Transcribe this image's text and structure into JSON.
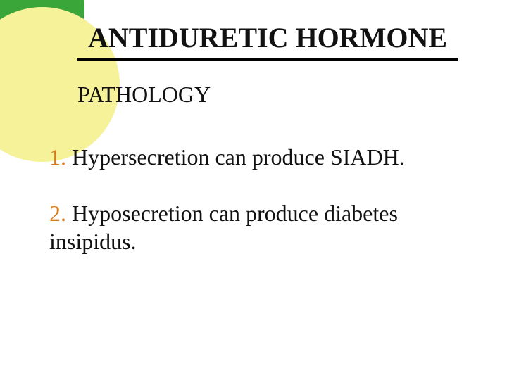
{
  "slide": {
    "title": "ANTIDURETIC HORMONE",
    "subtitle": "PATHOLOGY",
    "items": [
      {
        "num": "1.",
        "text": " Hypersecretion can produce SIADH."
      },
      {
        "num": "2.",
        "text": " Hyposecretion can produce diabetes insipidus."
      }
    ],
    "colors": {
      "outer_circle": "#3aa63a",
      "inner_circle": "#f5f29a",
      "number_color": "#d67b1a",
      "text_color": "#111111",
      "background": "#ffffff",
      "rule_color": "#000000"
    },
    "typography": {
      "title_font": "Georgia serif bold",
      "title_size_pt": 30,
      "body_font": "Comic Sans MS cursive",
      "body_size_pt": 24
    }
  }
}
